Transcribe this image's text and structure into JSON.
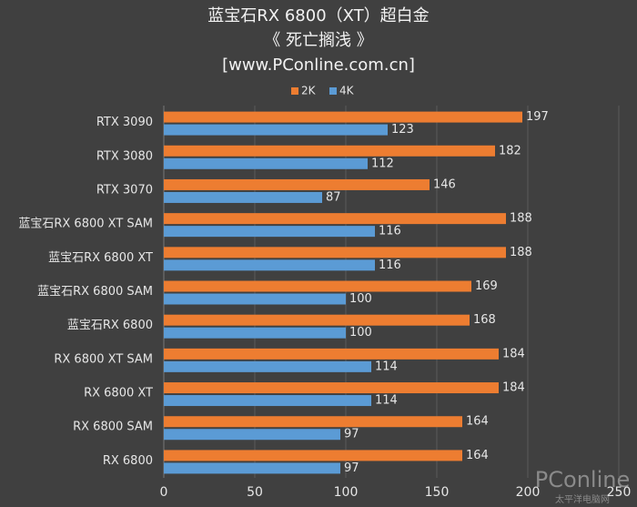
{
  "chart_data": {
    "type": "hbar",
    "title": "蓝宝石RX 6800（XT）超白金",
    "subtitle": "《 死亡搁浅 》",
    "source": "[www.PConline.com.cn]",
    "watermark": "PConline",
    "watermark_sub": "太平洋电脑网",
    "categories": [
      "RTX 3090",
      "RTX 3080",
      "RTX 3070",
      "蓝宝石RX 6800 XT SAM",
      "蓝宝石RX 6800 XT",
      "蓝宝石RX 6800 SAM",
      "蓝宝石RX 6800",
      "RX 6800 XT SAM",
      "RX 6800 XT",
      "RX 6800 SAM",
      "RX 6800"
    ],
    "series": [
      {
        "name": "2K",
        "color": "#ed7d31",
        "values": [
          197,
          182,
          146,
          188,
          188,
          169,
          168,
          184,
          184,
          164,
          164
        ]
      },
      {
        "name": "4K",
        "color": "#5b9bd5",
        "values": [
          123,
          112,
          87,
          116,
          116,
          100,
          100,
          114,
          114,
          97,
          97
        ]
      }
    ],
    "xlim": [
      0,
      250
    ],
    "xticks": [
      0,
      50,
      100,
      150,
      200,
      250
    ],
    "grid": true,
    "legend": "top"
  }
}
